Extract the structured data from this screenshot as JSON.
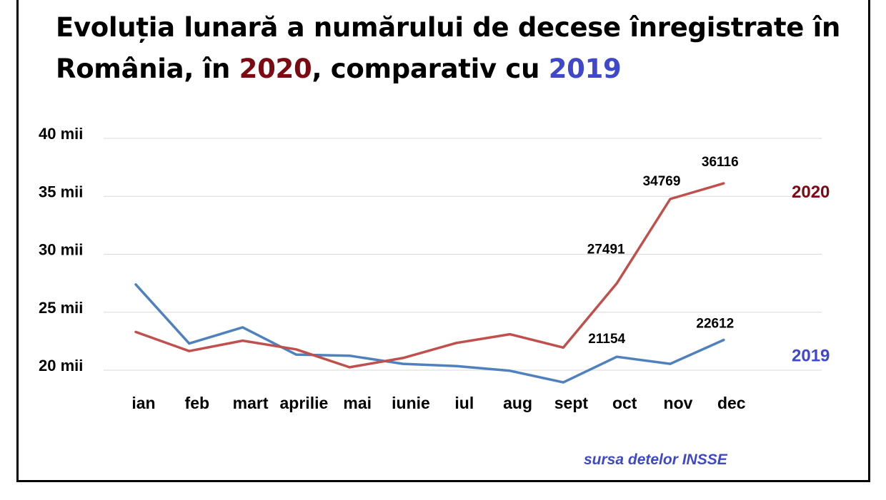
{
  "title": {
    "part1": "Evoluția lunară a numărului de decese înregistrate în România, în ",
    "year2020": "2020",
    "part2": ", comparativ cu ",
    "year2019": "2019"
  },
  "source": "sursa detelor INSSE",
  "colors": {
    "series2020": "#c0504d",
    "series2019": "#4f81bd",
    "label2020": "#7b0a12",
    "label2019": "#3f48c8",
    "grid": "#d9d9d9"
  },
  "chart_data": {
    "type": "line",
    "title": "Evoluția lunară a numărului de decese înregistrate în România, în 2020, comparativ cu 2019",
    "xlabel": "",
    "ylabel": "",
    "categories": [
      "ian",
      "feb",
      "mart",
      "aprilie",
      "mai",
      "iunie",
      "iul",
      "aug",
      "sept",
      "oct",
      "nov",
      "dec"
    ],
    "ylim": [
      20000,
      40000
    ],
    "yticks": [
      20000,
      25000,
      30000,
      35000,
      40000
    ],
    "ytick_labels": [
      "20 mii",
      "25 mii",
      "30 mii",
      "35 mii",
      "40 mii"
    ],
    "grid": true,
    "legend": "series labels at right end of lines",
    "series": [
      {
        "name": "2020",
        "values": [
          23300,
          21650,
          22550,
          21800,
          20250,
          21050,
          22350,
          23100,
          21950,
          27491,
          34769,
          36116
        ],
        "labels": [
          "",
          "",
          "",
          "",
          "",
          "",
          "",
          "",
          "",
          "27491",
          "34769",
          "36116"
        ]
      },
      {
        "name": "2019",
        "values": [
          27400,
          22300,
          23700,
          21350,
          21250,
          20550,
          20350,
          19950,
          18950,
          21154,
          20550,
          22612
        ],
        "labels": [
          "",
          "",
          "",
          "",
          "",
          "",
          "",
          "",
          "",
          "21154",
          "",
          "22612"
        ]
      }
    ]
  }
}
